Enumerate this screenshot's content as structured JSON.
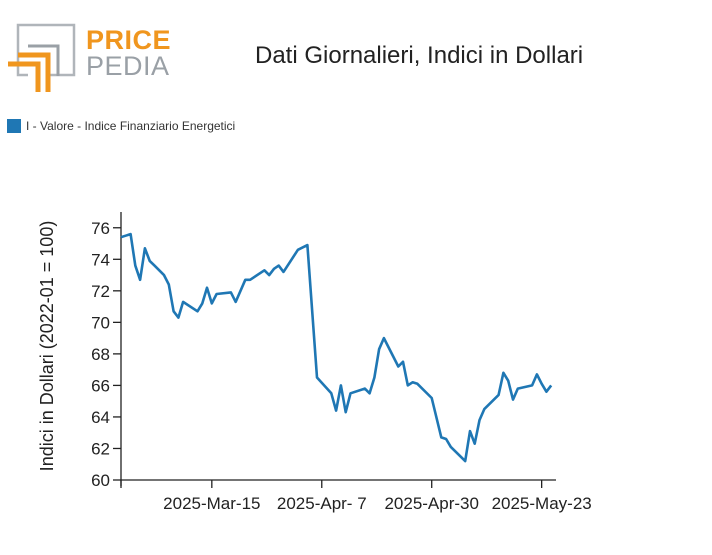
{
  "logo": {
    "word1": "PRICE",
    "word2": "PEDIA",
    "colors": {
      "orange": "#f0961e",
      "grey": "#9aa0a6"
    }
  },
  "chart_data": {
    "type": "line",
    "title": "Dati Giornalieri, Indici in Dollari",
    "ylabel": "Indici in Dollari (2022-01 = 100)",
    "xlabel": "",
    "ylim": [
      60,
      77
    ],
    "xlim": [
      "2025-02-24",
      "2025-05-26"
    ],
    "yticks": [
      60,
      62,
      64,
      66,
      68,
      70,
      72,
      74,
      76
    ],
    "xticks": [
      {
        "date": "2025-03-15",
        "label": "2025-Mar-15"
      },
      {
        "date": "2025-04-07",
        "label": "2025-Apr- 7"
      },
      {
        "date": "2025-04-30",
        "label": "2025-Apr-30"
      },
      {
        "date": "2025-05-23",
        "label": "2025-May-23"
      }
    ],
    "grid": false,
    "legend_position": "top-left",
    "series": [
      {
        "name": "I - Valore - Indice Finanziario Energetici",
        "color": "#1f77b4",
        "points": [
          [
            "2025-02-24",
            75.4
          ],
          [
            "2025-02-26",
            75.6
          ],
          [
            "2025-02-27",
            73.6
          ],
          [
            "2025-02-28",
            72.7
          ],
          [
            "2025-03-01",
            74.7
          ],
          [
            "2025-03-02",
            73.9
          ],
          [
            "2025-03-03",
            73.6
          ],
          [
            "2025-03-05",
            73.0
          ],
          [
            "2025-03-06",
            72.4
          ],
          [
            "2025-03-07",
            70.7
          ],
          [
            "2025-03-08",
            70.3
          ],
          [
            "2025-03-09",
            71.3
          ],
          [
            "2025-03-12",
            70.7
          ],
          [
            "2025-03-13",
            71.2
          ],
          [
            "2025-03-14",
            72.2
          ],
          [
            "2025-03-15",
            71.2
          ],
          [
            "2025-03-16",
            71.8
          ],
          [
            "2025-03-19",
            71.9
          ],
          [
            "2025-03-20",
            71.3
          ],
          [
            "2025-03-22",
            72.7
          ],
          [
            "2025-03-23",
            72.7
          ],
          [
            "2025-03-26",
            73.3
          ],
          [
            "2025-03-27",
            73.0
          ],
          [
            "2025-03-28",
            73.4
          ],
          [
            "2025-03-29",
            73.6
          ],
          [
            "2025-03-30",
            73.2
          ],
          [
            "2025-04-02",
            74.6
          ],
          [
            "2025-04-04",
            74.9
          ],
          [
            "2025-04-06",
            66.5
          ],
          [
            "2025-04-09",
            65.5
          ],
          [
            "2025-04-10",
            64.4
          ],
          [
            "2025-04-11",
            66.0
          ],
          [
            "2025-04-12",
            64.3
          ],
          [
            "2025-04-13",
            65.5
          ],
          [
            "2025-04-16",
            65.8
          ],
          [
            "2025-04-17",
            65.5
          ],
          [
            "2025-04-18",
            66.5
          ],
          [
            "2025-04-19",
            68.3
          ],
          [
            "2025-04-20",
            69.0
          ],
          [
            "2025-04-23",
            67.2
          ],
          [
            "2025-04-24",
            67.5
          ],
          [
            "2025-04-25",
            66.0
          ],
          [
            "2025-04-26",
            66.2
          ],
          [
            "2025-04-27",
            66.1
          ],
          [
            "2025-04-30",
            65.2
          ],
          [
            "2025-05-02",
            62.7
          ],
          [
            "2025-05-03",
            62.6
          ],
          [
            "2025-05-04",
            62.1
          ],
          [
            "2025-05-07",
            61.2
          ],
          [
            "2025-05-08",
            63.1
          ],
          [
            "2025-05-09",
            62.3
          ],
          [
            "2025-05-10",
            63.8
          ],
          [
            "2025-05-11",
            64.5
          ],
          [
            "2025-05-14",
            65.4
          ],
          [
            "2025-05-15",
            66.8
          ],
          [
            "2025-05-16",
            66.3
          ],
          [
            "2025-05-17",
            65.1
          ],
          [
            "2025-05-18",
            65.8
          ],
          [
            "2025-05-21",
            66.0
          ],
          [
            "2025-05-22",
            66.7
          ],
          [
            "2025-05-23",
            66.1
          ],
          [
            "2025-05-24",
            65.6
          ],
          [
            "2025-05-25",
            66.0
          ]
        ]
      }
    ]
  }
}
